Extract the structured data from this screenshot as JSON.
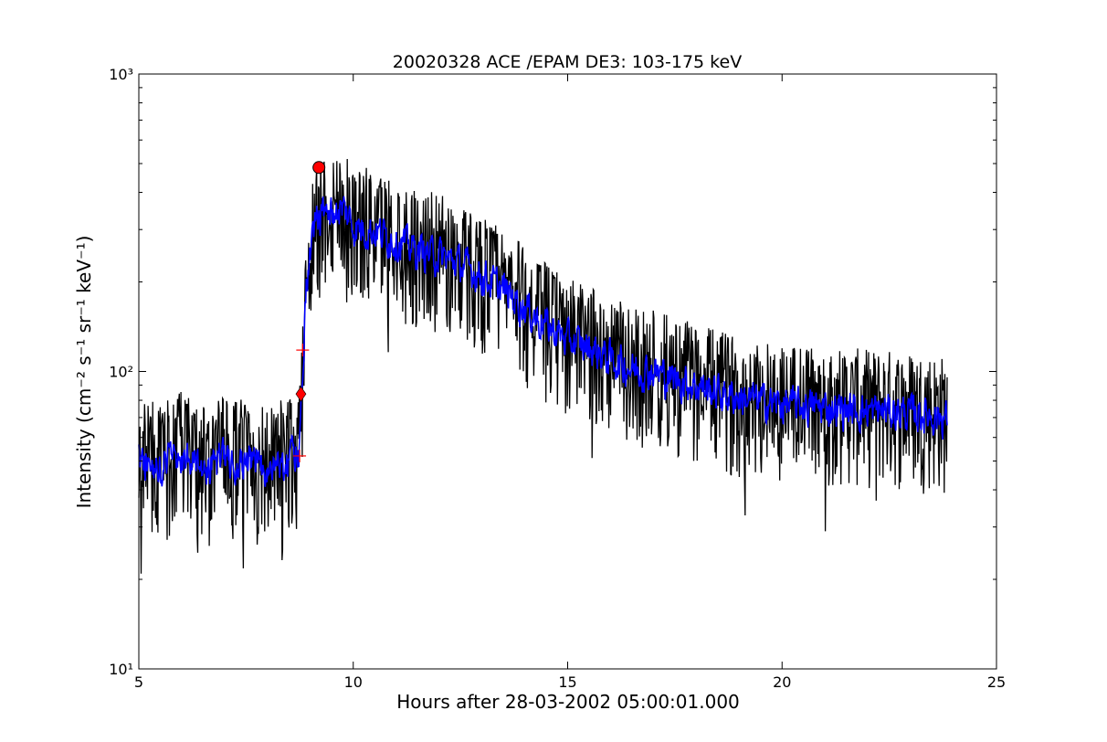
{
  "chart_data": {
    "type": "line",
    "title": "20020328 ACE /EPAM DE3: 103-175 keV",
    "xlabel": "Hours after 28-03-2002 05:00:01.000",
    "ylabel": "Intensity (cm⁻² s⁻¹ sr⁻¹ keV⁻¹)",
    "xlim": [
      5,
      25
    ],
    "ylim": [
      10,
      1000
    ],
    "yscale": "log",
    "x_ticks": [
      5,
      10,
      15,
      20,
      25
    ],
    "y_ticks": [
      10,
      100,
      1000
    ],
    "y_tick_labels": [
      "10¹",
      "10²",
      "10³"
    ],
    "grid": false,
    "series": [
      {
        "color": "#000000",
        "style": "raw",
        "x": [
          5.0,
          5.5,
          6.0,
          6.5,
          7.0,
          7.5,
          8.0,
          8.5,
          8.75,
          8.8,
          8.85,
          8.9,
          9.0,
          9.1,
          9.2,
          9.3,
          9.5,
          9.8,
          10.0,
          10.5,
          11.0,
          11.5,
          12.0,
          12.5,
          13.0,
          13.5,
          14.0,
          14.5,
          15.0,
          15.5,
          16.0,
          16.5,
          17.0,
          17.5,
          18.0,
          18.5,
          19.0,
          19.5,
          20.0,
          20.5,
          21.0,
          21.5,
          22.0,
          22.5,
          23.0,
          23.5,
          23.85
        ],
        "y": [
          50,
          48,
          52,
          47,
          50,
          49,
          46,
          50,
          52,
          80,
          120,
          200,
          250,
          300,
          330,
          330,
          335,
          345,
          300,
          290,
          270,
          250,
          240,
          225,
          205,
          185,
          160,
          140,
          125,
          118,
          108,
          100,
          98,
          92,
          88,
          83,
          80,
          78,
          76,
          75,
          74,
          73,
          72,
          72,
          71,
          70,
          68
        ],
        "noise_low": 0.55,
        "noise_high": 1.65
      },
      {
        "color": "#0000ff",
        "style": "smoothed",
        "x": [
          5.0,
          5.5,
          6.0,
          6.5,
          7.0,
          7.5,
          8.0,
          8.5,
          8.75,
          8.8,
          8.85,
          8.9,
          9.0,
          9.1,
          9.2,
          9.3,
          9.5,
          9.8,
          10.0,
          10.5,
          11.0,
          11.5,
          12.0,
          12.5,
          13.0,
          13.5,
          14.0,
          14.5,
          15.0,
          15.5,
          16.0,
          16.5,
          17.0,
          17.5,
          18.0,
          18.5,
          19.0,
          19.5,
          20.0,
          20.5,
          21.0,
          21.5,
          22.0,
          22.5,
          23.0,
          23.5,
          23.85
        ],
        "y": [
          50,
          48,
          52,
          47,
          50,
          49,
          46,
          50,
          52,
          80,
          120,
          200,
          250,
          300,
          330,
          330,
          335,
          345,
          300,
          290,
          270,
          250,
          240,
          225,
          205,
          185,
          160,
          140,
          125,
          118,
          108,
          100,
          98,
          92,
          88,
          83,
          80,
          78,
          76,
          75,
          74,
          73,
          72,
          72,
          71,
          70,
          68
        ],
        "noise_low": 0.8,
        "noise_high": 1.25
      }
    ],
    "markers": [
      {
        "shape": "plus",
        "color": "#ff0000",
        "x": 8.75,
        "y": 52
      },
      {
        "shape": "diamond",
        "color": "#ff0000",
        "x": 8.78,
        "y": 84
      },
      {
        "shape": "plus",
        "color": "#ff0000",
        "x": 8.82,
        "y": 118
      },
      {
        "shape": "circle",
        "color": "#ff0000",
        "x": 9.2,
        "y": 485
      }
    ]
  }
}
